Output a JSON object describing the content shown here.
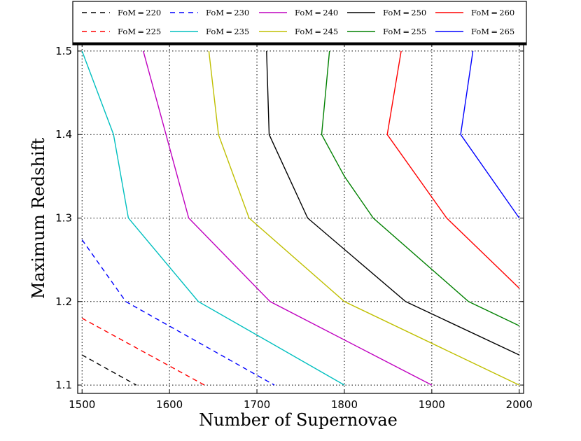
{
  "chart_data": {
    "type": "line",
    "title": "",
    "xlabel": "Number of Supernovae",
    "ylabel": "Maximum Redshift",
    "xlim": [
      1495,
      2005
    ],
    "ylim": [
      1.09,
      1.51
    ],
    "grid": true,
    "legend_position": "top",
    "x_ticks": [
      1500,
      1600,
      1700,
      1800,
      1900,
      2000
    ],
    "x_tick_labels": [
      "1500",
      "1600",
      "1700",
      "1800",
      "1900",
      "2000"
    ],
    "y_ticks": [
      1.1,
      1.2,
      1.3,
      1.4,
      1.5
    ],
    "y_tick_labels": [
      "1.1",
      "1.2",
      "1.3",
      "1.4",
      "1.5"
    ],
    "series": [
      {
        "name": "FoM = 220",
        "legend_text": "FoM = 220",
        "color": "#000000",
        "dashed": true,
        "points": [
          [
            1500,
            1.136
          ],
          [
            1562,
            1.1
          ]
        ]
      },
      {
        "name": "FoM = 225",
        "legend_text": "FoM = 225",
        "color": "#ff0000",
        "dashed": true,
        "points": [
          [
            1500,
            1.18
          ],
          [
            1640,
            1.1
          ]
        ]
      },
      {
        "name": "FoM = 230",
        "legend_text": "FoM = 230",
        "color": "#0000ff",
        "dashed": true,
        "points": [
          [
            1500,
            1.274
          ],
          [
            1550,
            1.2
          ],
          [
            1720,
            1.1
          ]
        ]
      },
      {
        "name": "FoM = 235",
        "legend_text": "FoM = 235",
        "color": "#00bfbf",
        "dashed": false,
        "points": [
          [
            1500,
            1.5
          ],
          [
            1536,
            1.4
          ],
          [
            1553,
            1.3
          ],
          [
            1633,
            1.2
          ],
          [
            1800,
            1.1
          ]
        ]
      },
      {
        "name": "FoM = 240",
        "legend_text": "FoM = 240",
        "color": "#bf00bf",
        "dashed": false,
        "points": [
          [
            1570,
            1.5
          ],
          [
            1622,
            1.3
          ],
          [
            1715,
            1.2
          ],
          [
            1900,
            1.1
          ]
        ]
      },
      {
        "name": "FoM = 245",
        "legend_text": "FoM = 245",
        "color": "#bfbf00",
        "dashed": false,
        "points": [
          [
            1645,
            1.5
          ],
          [
            1656,
            1.4
          ],
          [
            1691,
            1.3
          ],
          [
            1800,
            1.2
          ],
          [
            2000,
            1.1
          ]
        ]
      },
      {
        "name": "FoM = 250",
        "legend_text": "FoM = 250",
        "color": "#000000",
        "dashed": false,
        "points": [
          [
            1711,
            1.5
          ],
          [
            1714,
            1.4
          ],
          [
            1758,
            1.3
          ],
          [
            1870,
            1.2
          ],
          [
            2000,
            1.136
          ]
        ]
      },
      {
        "name": "FoM = 255",
        "legend_text": "FoM = 255",
        "color": "#008000",
        "dashed": false,
        "points": [
          [
            1783,
            1.5
          ],
          [
            1774,
            1.4
          ],
          [
            1800,
            1.35
          ],
          [
            1833,
            1.3
          ],
          [
            1942,
            1.2
          ],
          [
            2000,
            1.171
          ]
        ]
      },
      {
        "name": "FoM = 260",
        "legend_text": "FoM = 260",
        "color": "#ff0000",
        "dashed": false,
        "points": [
          [
            1865,
            1.5
          ],
          [
            1849,
            1.4
          ],
          [
            1917,
            1.3
          ],
          [
            2000,
            1.216
          ]
        ]
      },
      {
        "name": "FoM = 265",
        "legend_text": "FoM = 265",
        "color": "#0000ff",
        "dashed": false,
        "points": [
          [
            1947,
            1.5
          ],
          [
            1933,
            1.4
          ],
          [
            2000,
            1.3
          ]
        ]
      }
    ],
    "legend_order": [
      "FoM = 220",
      "FoM = 230",
      "FoM = 240",
      "FoM = 250",
      "FoM = 260",
      "FoM = 225",
      "FoM = 235",
      "FoM = 245",
      "FoM = 255",
      "FoM = 265"
    ]
  }
}
